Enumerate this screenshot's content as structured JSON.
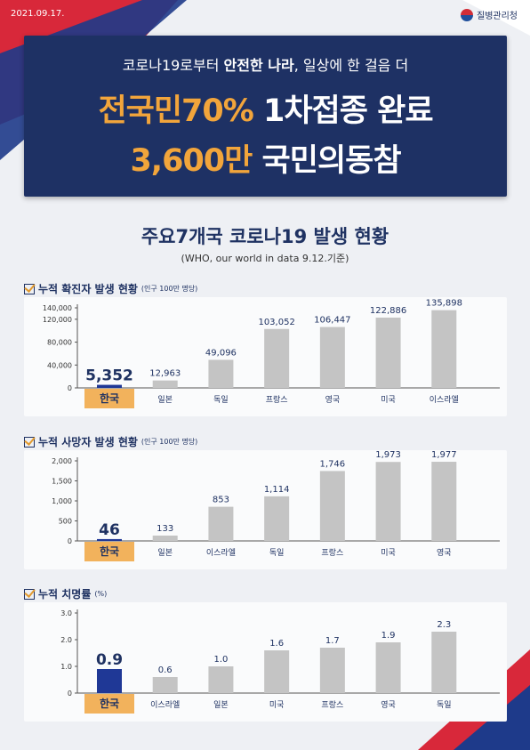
{
  "header": {
    "date": "2021.09.17.",
    "agency": "질병관리청"
  },
  "hero": {
    "subtitle_pre": "코로나19로부터 ",
    "subtitle_bold": "안전한 나라",
    "subtitle_post": ", 일상에 한 걸음 더",
    "line1_highlight": "전국민70%",
    "line1_rest": " 1차접종 완료",
    "line2_highlight": "3,600만",
    "line2_rest": " 국민의동참"
  },
  "section": {
    "title": "주요7개국 코로나19 발생 현황",
    "subtitle": "(WHO, our world in data 9.12.기준)"
  },
  "colors": {
    "navy": "#1f3262",
    "highlight_bar": "#1f3896",
    "bar": "#c4c4c4",
    "label_bg": "#f2b25c"
  },
  "chart_data": [
    {
      "type": "bar",
      "title": "누적 확진자 발생 현황",
      "unit": "(인구 100만 명당)",
      "categories": [
        "한국",
        "일본",
        "독일",
        "프랑스",
        "영국",
        "미국",
        "이스라엘"
      ],
      "values": [
        5352,
        12963,
        49096,
        103052,
        106447,
        122886,
        135898
      ],
      "value_labels": [
        "5,352",
        "12,963",
        "49,096",
        "103,052",
        "106,447",
        "122,886",
        "135,898"
      ],
      "yticks": [
        0,
        40000,
        80000,
        120000,
        140000
      ],
      "ytick_labels": [
        "0",
        "40,000",
        "80,000",
        "120,000",
        "140,000"
      ],
      "ylim": [
        0,
        140000
      ],
      "highlight": "한국"
    },
    {
      "type": "bar",
      "title": "누적 사망자 발생 현황",
      "unit": "(인구 100만 명당)",
      "categories": [
        "한국",
        "일본",
        "이스라엘",
        "독일",
        "프랑스",
        "미국",
        "영국"
      ],
      "values": [
        46,
        133,
        853,
        1114,
        1746,
        1973,
        1977
      ],
      "value_labels": [
        "46",
        "133",
        "853",
        "1,114",
        "1,746",
        "1,973",
        "1,977"
      ],
      "yticks": [
        0,
        500,
        1000,
        1500,
        2000
      ],
      "ytick_labels": [
        "0",
        "500",
        "1,000",
        "1,500",
        "2,000"
      ],
      "ylim": [
        0,
        2000
      ],
      "highlight": "한국"
    },
    {
      "type": "bar",
      "title": "누적 치명률",
      "unit": "(%)",
      "categories": [
        "한국",
        "이스라엘",
        "일본",
        "미국",
        "프랑스",
        "영국",
        "독일"
      ],
      "values": [
        0.9,
        0.6,
        1.0,
        1.6,
        1.7,
        1.9,
        2.3
      ],
      "value_labels": [
        "0.9",
        "0.6",
        "1.0",
        "1.6",
        "1.7",
        "1.9",
        "2.3"
      ],
      "yticks": [
        0,
        1,
        2,
        3
      ],
      "ytick_labels": [
        "0",
        "1.0",
        "2.0",
        "3.0"
      ],
      "ylim": [
        0,
        3
      ],
      "highlight": "한국"
    }
  ]
}
